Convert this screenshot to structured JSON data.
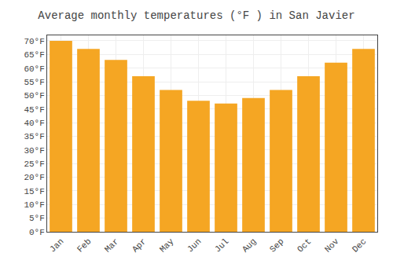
{
  "chart_data": {
    "type": "bar",
    "title": "Average monthly temperatures (°F ) in San Javier",
    "categories": [
      "Jan",
      "Feb",
      "Mar",
      "Apr",
      "May",
      "Jun",
      "Jul",
      "Aug",
      "Sep",
      "Oct",
      "Nov",
      "Dec"
    ],
    "values": [
      70,
      67,
      63,
      57,
      52,
      48,
      47,
      49,
      52,
      57,
      62,
      67
    ],
    "color": "#F5A623",
    "ylim": [
      0,
      72
    ],
    "yticks": [
      {
        "value": 0,
        "label": "0°F"
      },
      {
        "value": 5,
        "label": "5°F"
      },
      {
        "value": 10,
        "label": "10°F"
      },
      {
        "value": 15,
        "label": "15°F"
      },
      {
        "value": 20,
        "label": "20°F"
      },
      {
        "value": 25,
        "label": "25°F"
      },
      {
        "value": 30,
        "label": "30°F"
      },
      {
        "value": 35,
        "label": "35°F"
      },
      {
        "value": 40,
        "label": "40°F"
      },
      {
        "value": 45,
        "label": "45°F"
      },
      {
        "value": 50,
        "label": "50°F"
      },
      {
        "value": 55,
        "label": "55°F"
      },
      {
        "value": 60,
        "label": "60°F"
      },
      {
        "value": 65,
        "label": "65°F"
      },
      {
        "value": 70,
        "label": "70°F"
      }
    ],
    "grid": true
  }
}
